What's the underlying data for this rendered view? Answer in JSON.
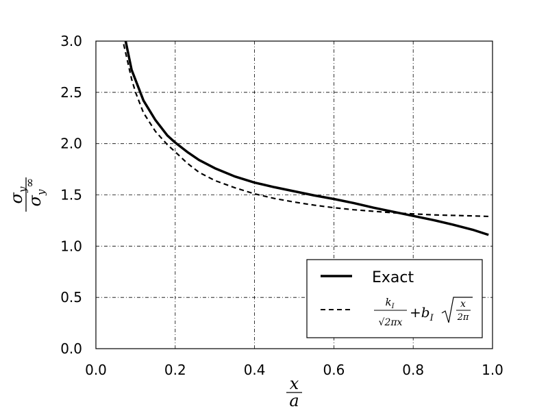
{
  "chart_data": {
    "type": "line",
    "xlabel": {
      "num": "x",
      "den": "a"
    },
    "ylabel": {
      "num": "σ",
      "num_sub": "y",
      "den": "σ",
      "den_sub": "y",
      "den_sup": "∞"
    },
    "xlim": [
      0.0,
      1.0
    ],
    "ylim": [
      0.0,
      3.0
    ],
    "xticks": [
      "0.0",
      "0.2",
      "0.4",
      "0.6",
      "0.8",
      "1.0"
    ],
    "yticks": [
      "0.0",
      "0.5",
      "1.0",
      "1.5",
      "2.0",
      "2.5",
      "3.0"
    ],
    "grid": true,
    "legend_position": "lower-right",
    "series": [
      {
        "name": "Exact",
        "style": "solid",
        "color": "#000000",
        "x": [
          0.075,
          0.09,
          0.1,
          0.12,
          0.15,
          0.18,
          0.2,
          0.23,
          0.26,
          0.3,
          0.35,
          0.4,
          0.45,
          0.5,
          0.55,
          0.6,
          0.65,
          0.7,
          0.75,
          0.8,
          0.85,
          0.9,
          0.95,
          0.99
        ],
        "y": [
          3.0,
          2.72,
          2.62,
          2.42,
          2.23,
          2.08,
          2.01,
          1.92,
          1.84,
          1.76,
          1.68,
          1.62,
          1.575,
          1.535,
          1.495,
          1.46,
          1.42,
          1.375,
          1.335,
          1.295,
          1.255,
          1.21,
          1.16,
          1.11
        ]
      },
      {
        "name": {
          "frac_num": "k",
          "frac_num_sub": "I",
          "frac_den": "√2πx",
          "plus": "+b",
          "plus_sub": "I",
          "sqrt_num": "x",
          "sqrt_den": "2π"
        },
        "style": "dashed",
        "color": "#000000",
        "x": [
          0.07,
          0.08,
          0.09,
          0.1,
          0.12,
          0.15,
          0.18,
          0.2,
          0.23,
          0.26,
          0.3,
          0.35,
          0.4,
          0.45,
          0.5,
          0.55,
          0.6,
          0.65,
          0.7,
          0.75,
          0.8,
          0.85,
          0.9,
          0.95,
          0.99
        ],
        "y": [
          2.97,
          2.8,
          2.63,
          2.5,
          2.3,
          2.12,
          1.99,
          1.92,
          1.81,
          1.72,
          1.64,
          1.57,
          1.51,
          1.465,
          1.43,
          1.4,
          1.375,
          1.355,
          1.34,
          1.325,
          1.315,
          1.305,
          1.3,
          1.295,
          1.29
        ]
      }
    ]
  }
}
